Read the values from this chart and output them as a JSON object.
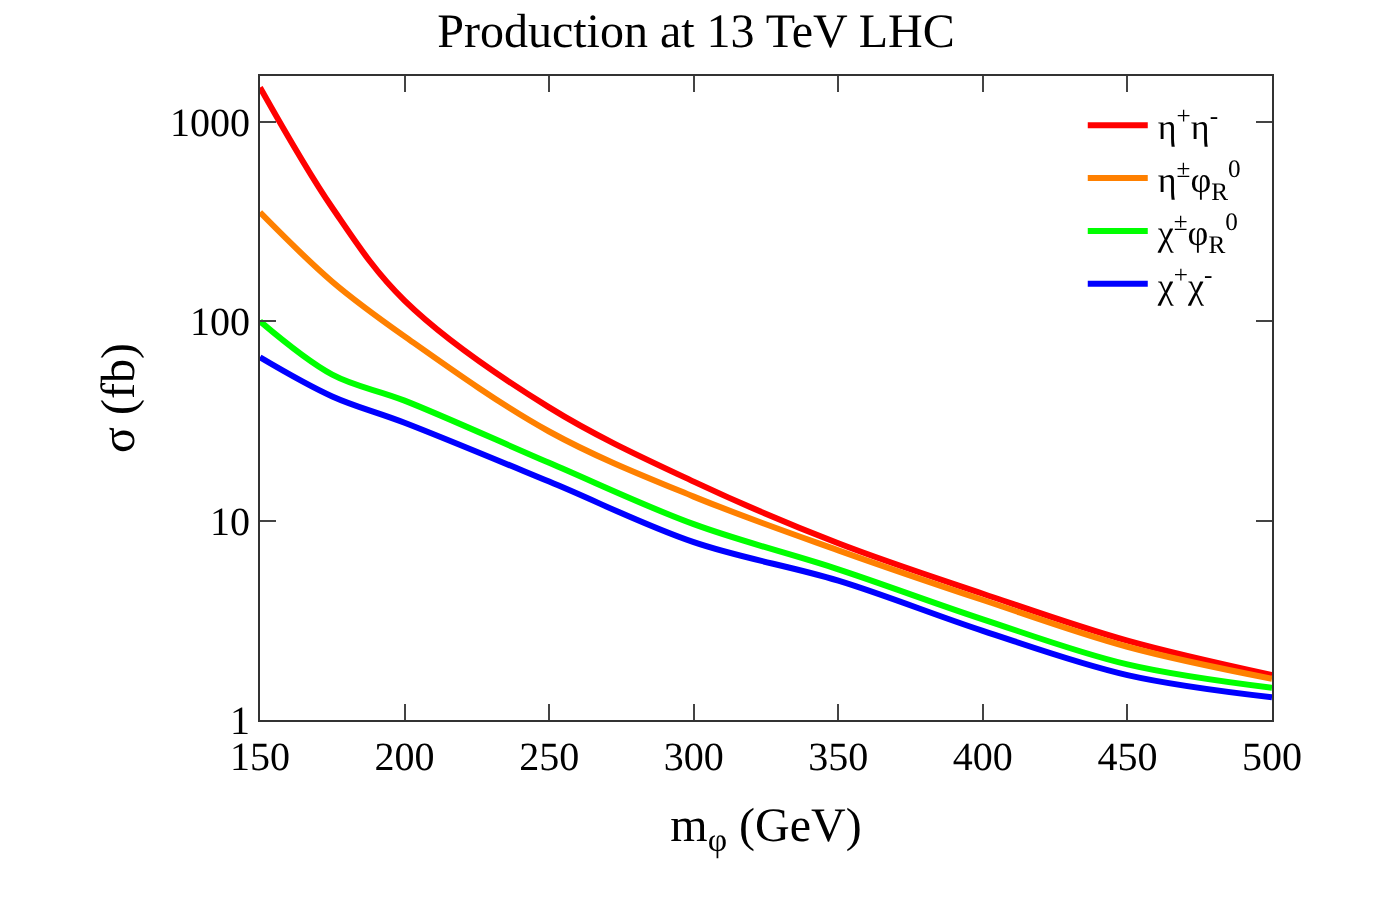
{
  "chart_data": {
    "type": "line",
    "title": "Production at 13 TeV LHC",
    "xlabel": "m$_{φ}$ (GeV)",
    "ylabel": "σ (fb)",
    "x": [
      150,
      175,
      200,
      250,
      300,
      350,
      400,
      450,
      500
    ],
    "series": [
      {
        "name": "η$^{+}$η$^{-}$",
        "color": "#ff0000",
        "values": [
          1490,
          371,
          127,
          37,
          15.7,
          7.7,
          4.3,
          2.5,
          1.68
        ]
      },
      {
        "name": "η$^{±}$φ$_{R}$$^{0}$",
        "color": "#ff8000",
        "values": [
          352,
          158,
          84,
          28,
          13.2,
          7.1,
          4.0,
          2.33,
          1.61
        ]
      },
      {
        "name": "χ$^{±}$φ$_{R}$$^{0}$",
        "color": "#00ff00",
        "values": [
          100,
          54,
          40,
          19.5,
          9.6,
          5.7,
          3.2,
          1.9,
          1.45
        ]
      },
      {
        "name": "χ$^{+}$χ$^{-}$",
        "color": "#0000ff",
        "values": [
          66,
          42,
          31,
          15.7,
          7.8,
          5.0,
          2.8,
          1.68,
          1.3
        ]
      }
    ],
    "xlim": [
      150,
      500
    ],
    "xticks": [
      150,
      200,
      250,
      300,
      350,
      400,
      450,
      500
    ],
    "ylim": [
      1,
      1700
    ],
    "yticks": [
      1,
      10,
      100,
      1000
    ],
    "log": "y",
    "grid": false,
    "legend": "top right",
    "marker": "none",
    "line_style": "solid"
  }
}
